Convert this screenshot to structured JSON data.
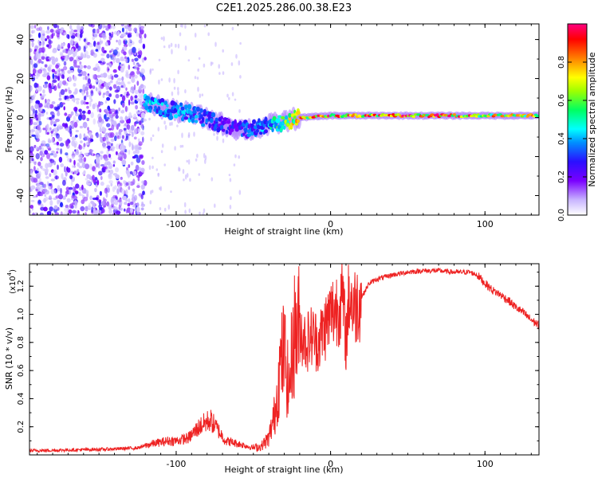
{
  "figure_title": "C2E1.2025.286.00.38.E23",
  "chart_data": [
    {
      "type": "heatmap",
      "title": "C2E1.2025.286.00.38.E23",
      "xlabel": "Height of straight line (km)",
      "ylabel": "Frequency (Hz)",
      "xlim": [
        -195,
        135
      ],
      "ylim": [
        -50,
        48
      ],
      "xticks": [
        -100,
        0,
        100
      ],
      "xtick_labels": [
        "-100",
        "0",
        "100"
      ],
      "yticks": [
        -40,
        -20,
        0,
        20,
        40
      ],
      "ytick_labels": [
        "-40",
        "-20",
        "0",
        "20",
        "40"
      ],
      "colorbar": {
        "label": "Normalized spectral amplitude",
        "range": [
          0.0,
          1.0
        ],
        "ticks": [
          0.0,
          0.2,
          0.4,
          0.6,
          0.8
        ],
        "tick_labels": [
          "0.0",
          "0.2",
          "0.4",
          "0.6",
          "0.8"
        ],
        "colormap": [
          "#ffffff",
          "#b8a0ff",
          "#7a00ff",
          "#2a10ff",
          "#0090ff",
          "#00ffff",
          "#00ff60",
          "#a0ff00",
          "#ffff00",
          "#ff8000",
          "#ff0000",
          "#ff0080"
        ]
      },
      "ridge": {
        "x": [
          -120,
          -105,
          -90,
          -75,
          -60,
          -50,
          -40,
          -30,
          -20,
          -10,
          0,
          20,
          50,
          80,
          100,
          135
        ],
        "frequency": [
          8,
          4,
          2,
          -2,
          -6,
          -6,
          -4,
          -2,
          0,
          0.5,
          1,
          1,
          1,
          1,
          1,
          1
        ],
        "amplitude": [
          0.45,
          0.45,
          0.4,
          0.3,
          0.3,
          0.35,
          0.45,
          0.65,
          0.8,
          0.9,
          0.95,
          0.9,
          0.95,
          0.95,
          0.8,
          0.8
        ]
      },
      "noise_region_x": [
        -195,
        -120
      ]
    },
    {
      "type": "line",
      "xlabel": "Height of straight line (km)",
      "ylabel": "SNR (10 * v/v)",
      "y_multiplier": "(x10",
      "y_exponent": "4",
      "xlim": [
        -195,
        135
      ],
      "ylim": [
        0,
        1.36
      ],
      "xticks": [
        -100,
        0,
        100
      ],
      "xtick_labels": [
        "-100",
        "0",
        "100"
      ],
      "yticks": [
        0.2,
        0.4,
        0.6,
        0.8,
        1.0,
        1.2
      ],
      "ytick_labels": [
        "0.2",
        "0.4",
        "0.6",
        "0.8",
        "1.0",
        "1.2"
      ],
      "line_color": "#ee2222",
      "series": [
        {
          "name": "SNR",
          "x": [
            -195,
            -170,
            -145,
            -125,
            -115,
            -105,
            -100,
            -92,
            -85,
            -78,
            -73,
            -68,
            -60,
            -50,
            -45,
            -40,
            -36,
            -33,
            -30,
            -27,
            -24,
            -20,
            -16,
            -12,
            -8,
            -4,
            0,
            4,
            8,
            10,
            12,
            15,
            20,
            25,
            30,
            40,
            50,
            60,
            70,
            80,
            90,
            95,
            100,
            105,
            110,
            115,
            120,
            125,
            130,
            135
          ],
          "y": [
            0.03,
            0.035,
            0.04,
            0.05,
            0.08,
            0.1,
            0.1,
            0.12,
            0.2,
            0.25,
            0.18,
            0.1,
            0.08,
            0.05,
            0.06,
            0.12,
            0.3,
            0.6,
            0.75,
            0.45,
            0.85,
            0.9,
            0.8,
            0.85,
            0.8,
            0.9,
            1.0,
            1.05,
            1.1,
            0.8,
            1.15,
            1.05,
            1.12,
            1.22,
            1.25,
            1.28,
            1.3,
            1.31,
            1.31,
            1.3,
            1.3,
            1.28,
            1.22,
            1.17,
            1.14,
            1.1,
            1.05,
            1.01,
            0.96,
            0.92
          ]
        }
      ]
    }
  ]
}
